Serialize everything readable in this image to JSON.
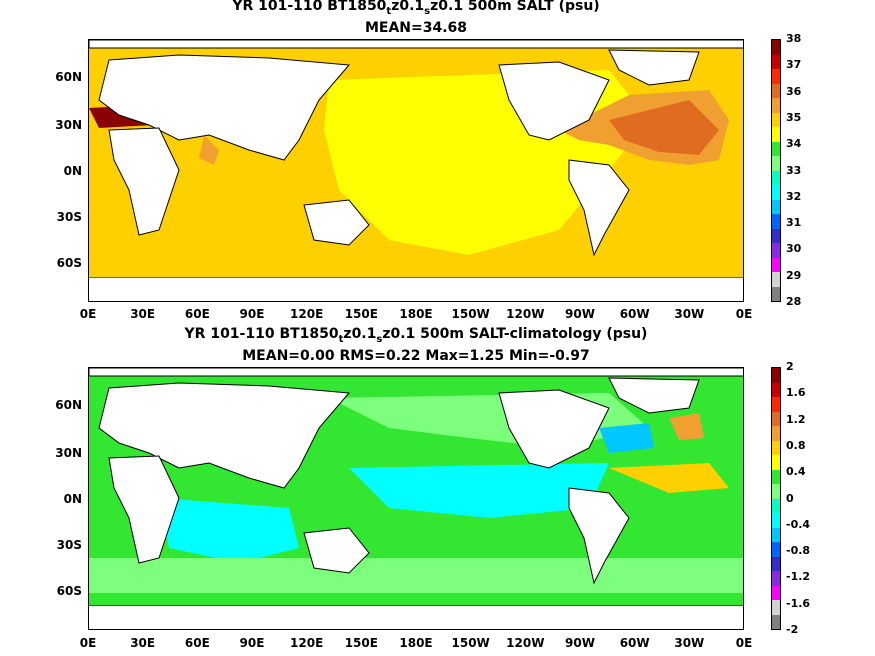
{
  "panel1": {
    "title_line1": [
      "YR 101-110 BT1850",
      "t",
      "z0.1",
      "s",
      "z0.1 500m SALT (psu)"
    ],
    "title_line2": "MEAN=34.68",
    "lat_labels": [
      "60N",
      "30N",
      "0N",
      "30S",
      "60S"
    ],
    "lon_labels": [
      "0E",
      "30E",
      "60E",
      "90E",
      "120E",
      "150E",
      "180E",
      "150W",
      "120W",
      "90W",
      "60W",
      "30W",
      "0E"
    ],
    "colorbar_labels": [
      "38",
      "37",
      "36",
      "35",
      "34",
      "33",
      "32",
      "31",
      "30",
      "29",
      "28"
    ],
    "colorbar_colors": [
      "#8b0000",
      "#c80000",
      "#ff2800",
      "#e06c1f",
      "#f0a030",
      "#ffd000",
      "#ffff00",
      "#32e632",
      "#7dff7d",
      "#00ffc8",
      "#00ffff",
      "#00c8ff",
      "#0064ff",
      "#3030c8",
      "#8a2be2",
      "#ff00ff",
      "#d2d2d2",
      "#808080"
    ]
  },
  "panel2": {
    "title_line1": [
      "YR 101-110 BT1850",
      "t",
      "z0.1",
      "s",
      "z0.1 500m SALT-climatology (psu)"
    ],
    "title_line2": "MEAN=0.00   RMS=0.22   Max=1.25   Min=-0.97",
    "lat_labels": [
      "60N",
      "30N",
      "0N",
      "30S",
      "60S"
    ],
    "lon_labels": [
      "0E",
      "30E",
      "60E",
      "90E",
      "120E",
      "150E",
      "180E",
      "150W",
      "120W",
      "90W",
      "60W",
      "30W",
      "0E"
    ],
    "colorbar_labels": [
      "2",
      "1.6",
      "1.2",
      "0.8",
      "0.4",
      "0",
      "-0.4",
      "-0.8",
      "-1.2",
      "-1.6",
      "-2"
    ],
    "colorbar_colors": [
      "#8b0000",
      "#c80000",
      "#ff2800",
      "#e06c1f",
      "#f0a030",
      "#ffd000",
      "#ffff00",
      "#32e632",
      "#7dff7d",
      "#00ffc8",
      "#00ffff",
      "#00c8ff",
      "#0064ff",
      "#3030c8",
      "#8a2be2",
      "#ff00ff",
      "#d2d2d2",
      "#808080"
    ]
  },
  "colors": {
    "land": "#ffffff",
    "coast": "#000000"
  }
}
